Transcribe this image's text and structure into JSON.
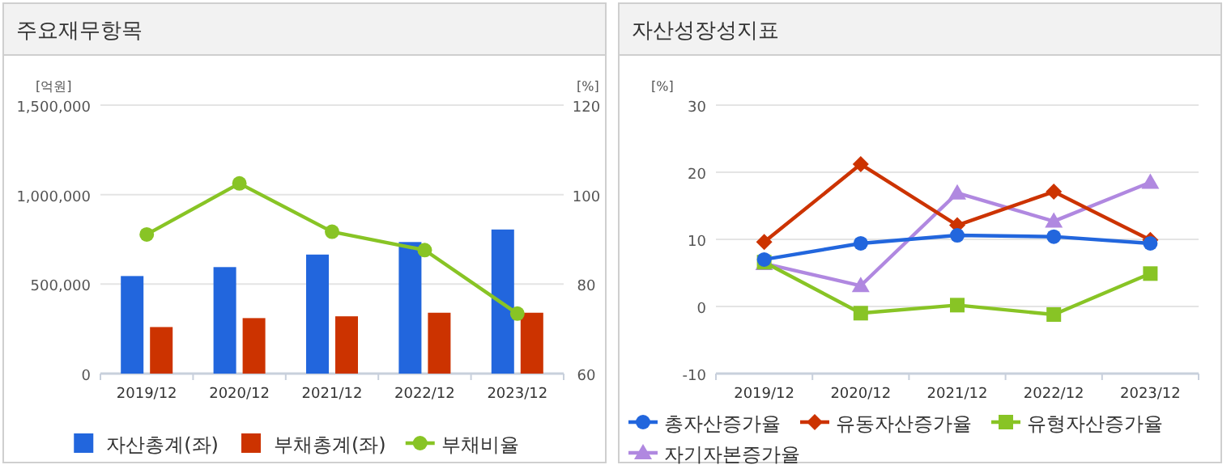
{
  "chart_data": [
    {
      "type": "bar",
      "title": "주요재무항목",
      "ylabel": "[억원]",
      "y2label": "[%]",
      "categories": [
        "2019/12",
        "2020/12",
        "2021/12",
        "2022/12",
        "2023/12"
      ],
      "series": [
        {
          "name": "자산총계(좌)",
          "color": "#2266dd",
          "values": [
            545000,
            595000,
            665000,
            735000,
            805000
          ]
        },
        {
          "name": "부채총계(좌)",
          "color": "#cc3300",
          "values": [
            260000,
            310000,
            320000,
            340000,
            340000
          ]
        },
        {
          "name": "부채비율",
          "type": "line",
          "axis": "y2",
          "marker": "circle",
          "color": "#88c425",
          "values": [
            91.1,
            102.5,
            91.7,
            87.6,
            73.4
          ]
        }
      ],
      "ylim": [
        0,
        1500000
      ],
      "yticks": [
        0,
        {
          "value": 500000,
          "label": "500,000"
        },
        {
          "value": 1000000,
          "label": "1,000,000"
        },
        {
          "value": 1500000,
          "label": "1,500,000"
        }
      ],
      "y2lim": [
        60,
        120
      ],
      "y2ticks": [
        60,
        80,
        100,
        120
      ],
      "grid": "y",
      "legend": "bottom"
    },
    {
      "type": "line",
      "title": "자산성장성지표",
      "ylabel": "[%]",
      "categories": [
        "2019/12",
        "2020/12",
        "2021/12",
        "2022/12",
        "2023/12"
      ],
      "series": [
        {
          "name": "총자산증가율",
          "marker": "circle",
          "color": "#2266dd",
          "values": [
            7.0,
            9.4,
            10.6,
            10.4,
            9.4
          ]
        },
        {
          "name": "유동자산증가율",
          "marker": "diamond",
          "color": "#cc3300",
          "values": [
            9.6,
            21.2,
            12.1,
            17.1,
            9.9
          ]
        },
        {
          "name": "유형자산증가율",
          "marker": "square",
          "color": "#88c425",
          "values": [
            6.6,
            -1.0,
            0.2,
            -1.2,
            4.9
          ]
        },
        {
          "name": "자기자본증가율",
          "marker": "triangle",
          "color": "#b088e0",
          "values": [
            6.4,
            3.1,
            16.9,
            12.7,
            18.5
          ]
        }
      ],
      "ylim": [
        -10,
        30
      ],
      "yticks": [
        -10,
        0,
        10,
        20,
        30
      ],
      "grid": "y",
      "legend": "bottom"
    }
  ]
}
